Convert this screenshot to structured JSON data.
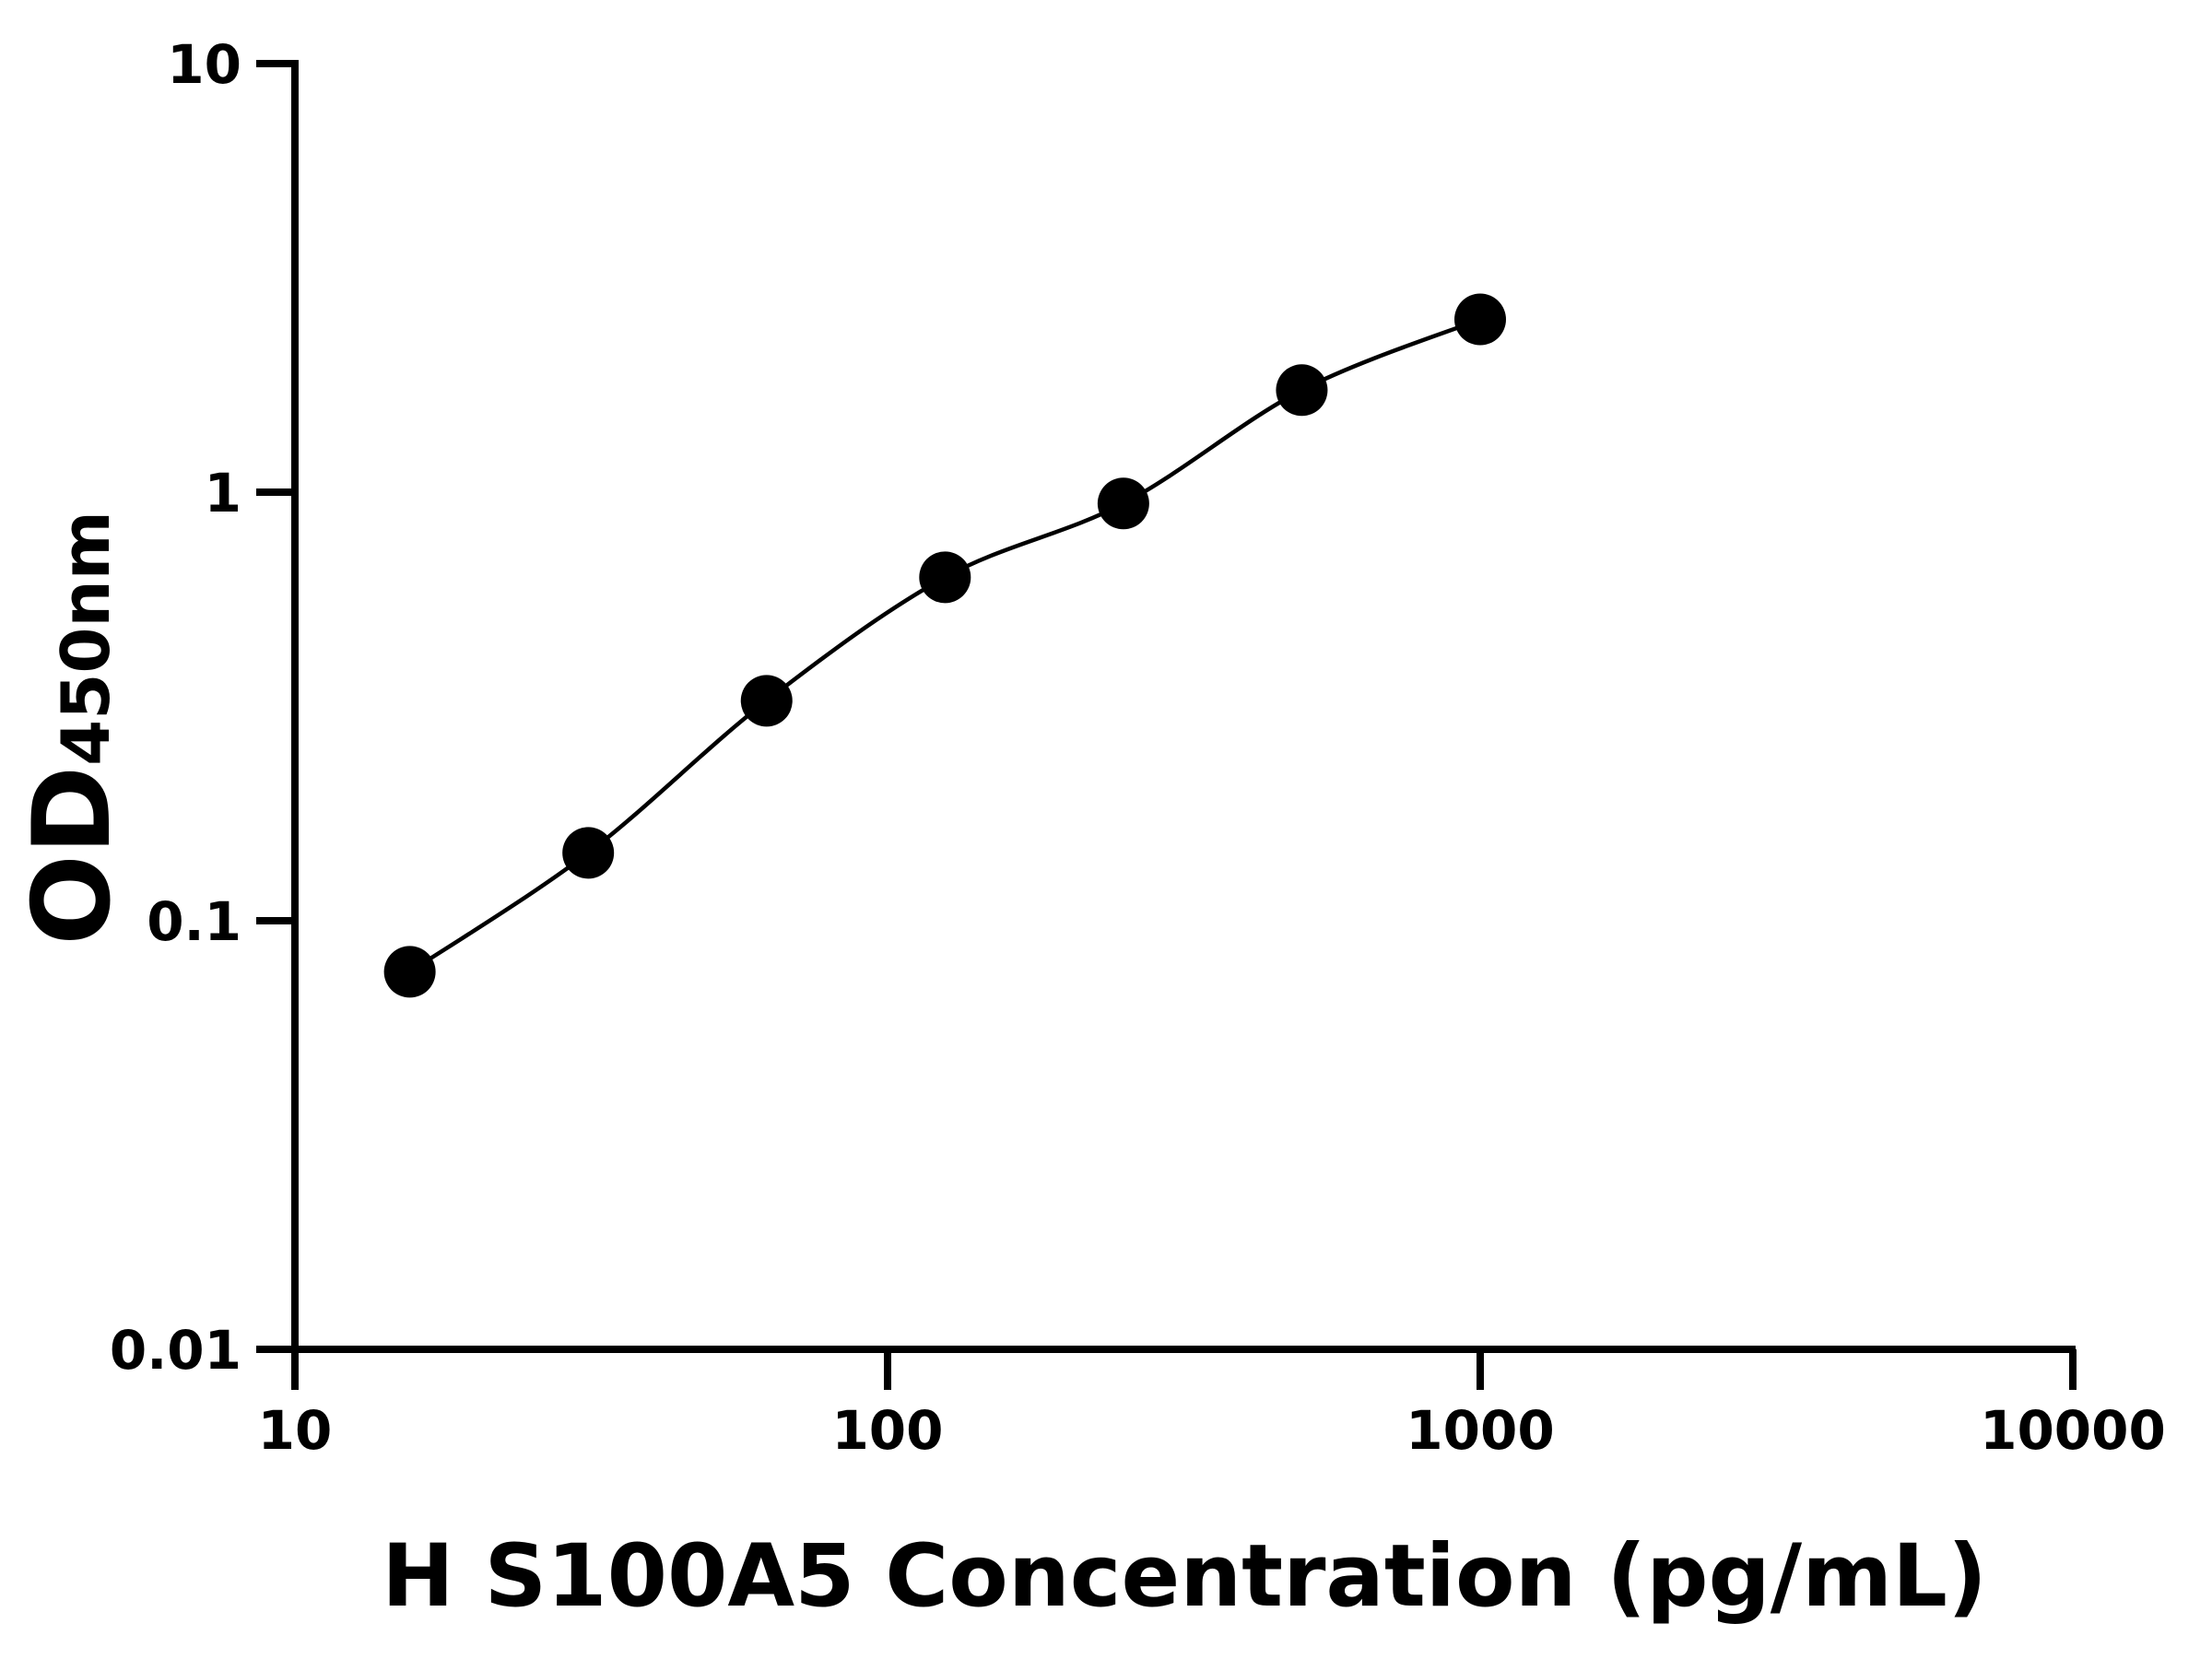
{
  "chart_data": {
    "type": "scatter",
    "title": "",
    "xlabel": "H S100A5 Concentration (pg/mL)",
    "ylabel": {
      "main": "OD",
      "subscript": "450nm"
    },
    "x_scale": "log",
    "y_scale": "log",
    "xlim": [
      10,
      10000
    ],
    "ylim": [
      0.01,
      10
    ],
    "x_ticks": [
      "10",
      "100",
      "1000",
      "10000"
    ],
    "y_ticks": [
      "0.01",
      "0.1",
      "1",
      "10"
    ],
    "grid": false,
    "legend": "none",
    "fit_line": true,
    "color": "#000000",
    "series": [
      {
        "x": [
          15.625,
          31.25,
          62.5,
          125,
          250,
          500,
          1000
        ],
        "y": [
          0.076,
          0.144,
          0.326,
          0.633,
          0.941,
          1.73,
          2.53
        ]
      }
    ]
  }
}
